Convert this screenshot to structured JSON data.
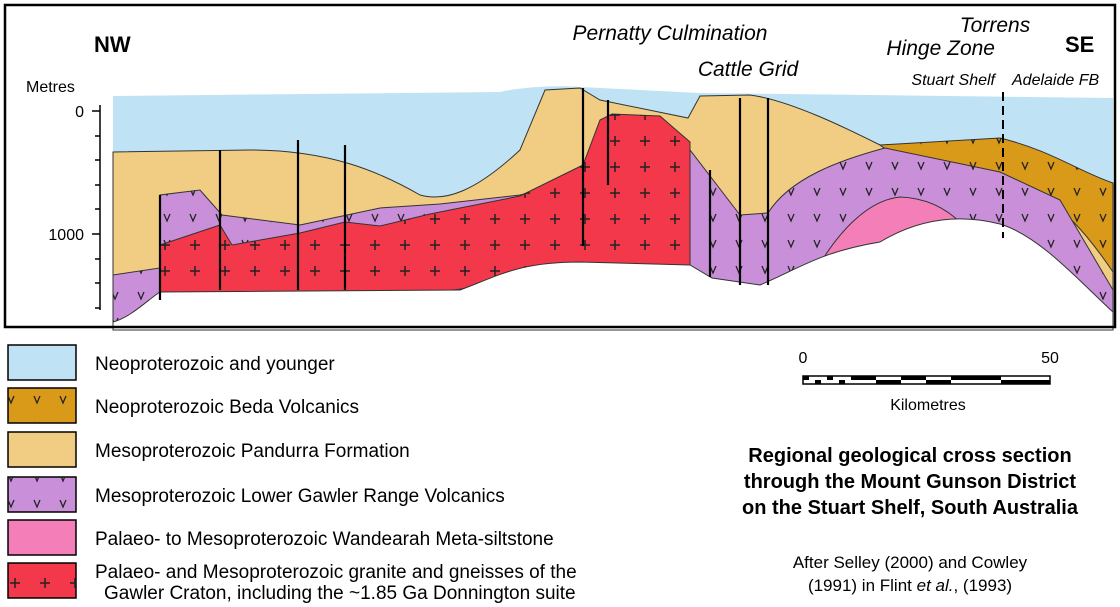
{
  "section": {
    "nw": "NW",
    "se": "SE",
    "pernatty": "Pernatty Culmination",
    "cattle_grid": "Cattle Grid",
    "torrens": [
      "Torrens",
      "Hinge Zone"
    ],
    "stuart_shelf": "Stuart Shelf",
    "adelaide_fb": "Adelaide FB",
    "depth_unit": "Metres",
    "depth_labels": [
      "0",
      "1000"
    ]
  },
  "legend": [
    {
      "lines": [
        "Neoproterozoic and younger"
      ]
    },
    {
      "lines": [
        "Neoproterozoic Beda Volcanics"
      ]
    },
    {
      "lines": [
        "Mesoproterozoic Pandurra Formation"
      ]
    },
    {
      "lines": [
        "Mesoproterozoic Lower Gawler Range Volcanics"
      ]
    },
    {
      "lines": [
        "Palaeo- to Mesoproterozoic Wandearah Meta-siltstone"
      ]
    },
    {
      "lines": [
        "Palaeo- and Mesoproterozoic granite and gneisses of the",
        "Gawler Craton, including the ~1.85 Ga Donnington suite"
      ]
    }
  ],
  "scale": {
    "start": "0",
    "end": "50",
    "unit": "Kilometres"
  },
  "caption": {
    "title": [
      "Regional geological cross section",
      "through the Mount Gunson District",
      "on the Stuart Shelf, South Australia"
    ],
    "credit": [
      "After Selley (2000) and Cowley",
      "(1991) in Flint ",
      "et al.",
      ", (1993)"
    ]
  }
}
